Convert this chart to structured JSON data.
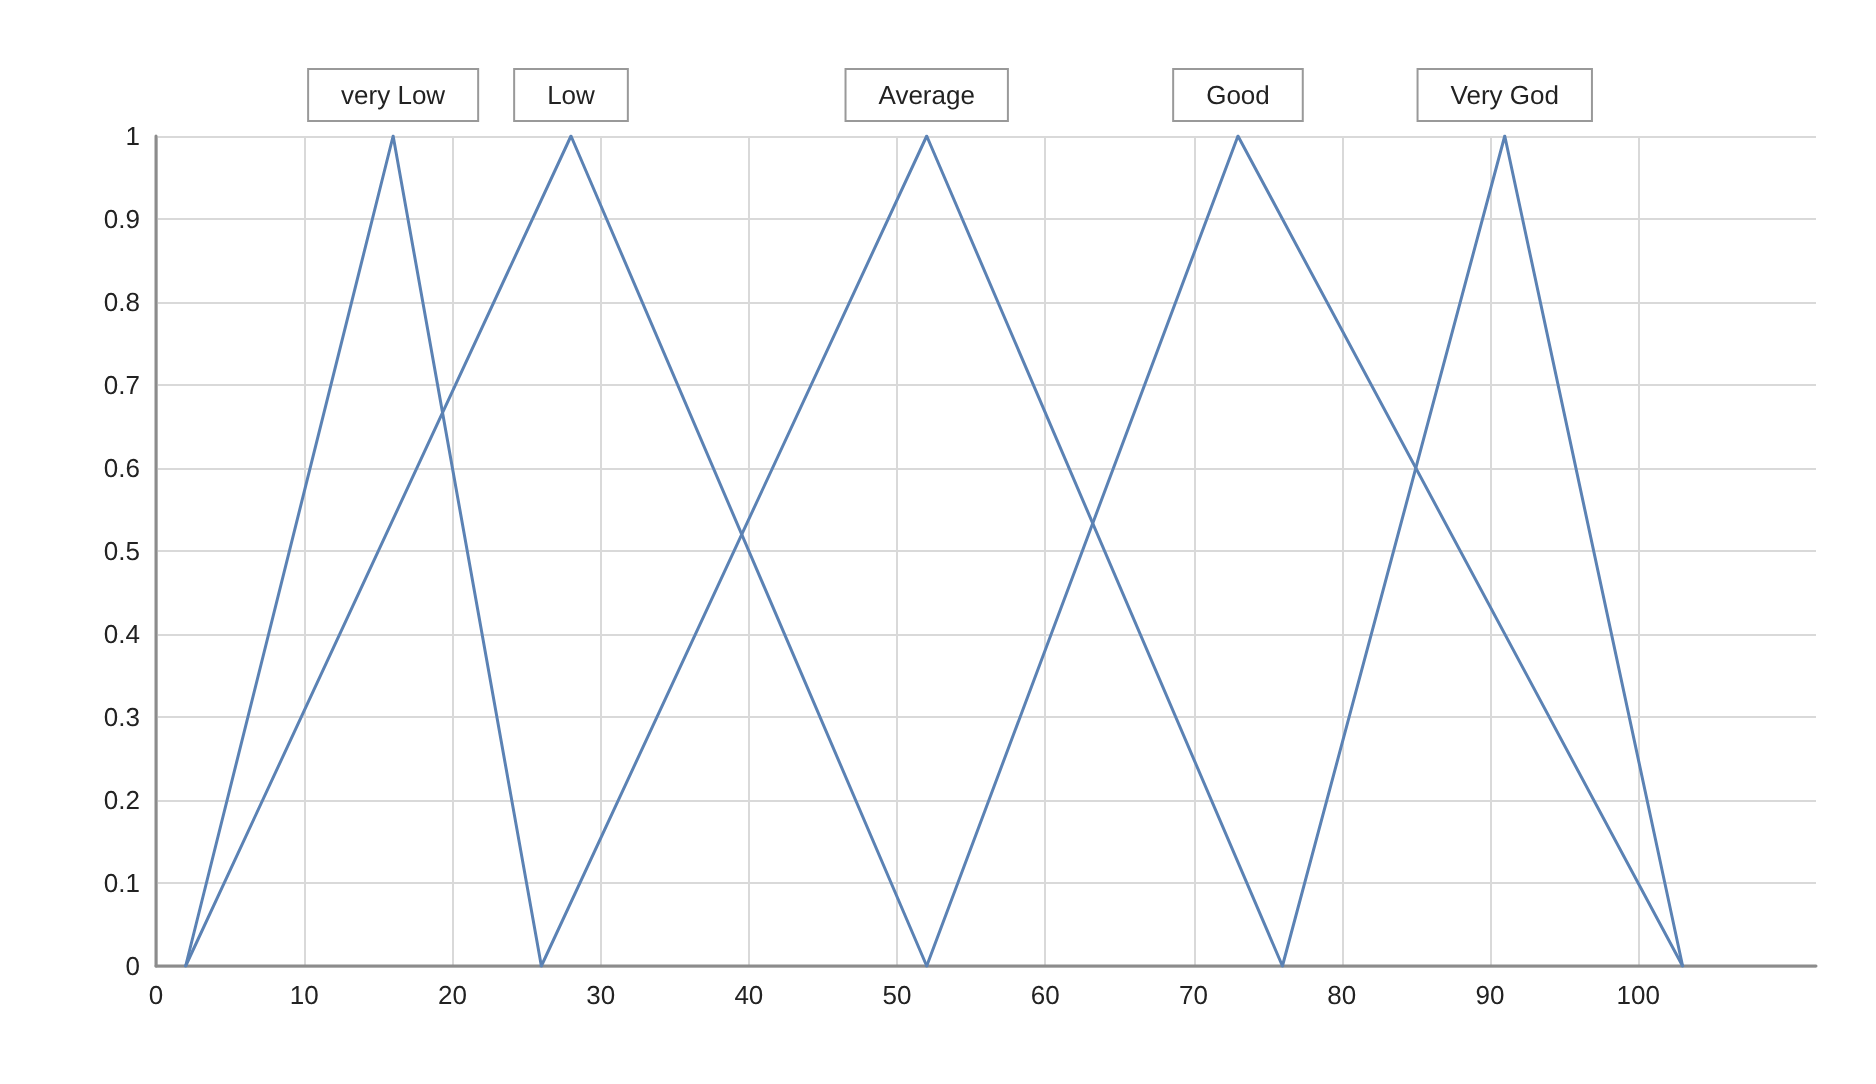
{
  "chart_data": {
    "type": "line",
    "marker": "none",
    "line_style": "solid",
    "grid": true,
    "xlim": [
      0,
      112
    ],
    "xticks": [
      0,
      10,
      20,
      30,
      40,
      50,
      60,
      70,
      80,
      90,
      100
    ],
    "ylim": [
      0,
      1
    ],
    "yticks": [
      0,
      0.1,
      0.2,
      0.3,
      0.4,
      0.5,
      0.6,
      0.7,
      0.8,
      0.9,
      1
    ],
    "series": [
      {
        "color": "#5b82b4",
        "x": [
          2,
          16,
          26
        ],
        "values": [
          0,
          1,
          0
        ]
      },
      {
        "color": "#5b82b4",
        "x": [
          2,
          28,
          52
        ],
        "values": [
          0,
          1,
          0
        ]
      },
      {
        "color": "#5b82b4",
        "x": [
          26,
          52,
          76
        ],
        "values": [
          0,
          1,
          0
        ]
      },
      {
        "color": "#5b82b4",
        "x": [
          52,
          73,
          103
        ],
        "values": [
          0,
          1,
          0
        ]
      },
      {
        "color": "#5b82b4",
        "x": [
          76,
          91,
          103
        ],
        "values": [
          0,
          1,
          0
        ]
      }
    ],
    "annotations": [
      {
        "text": "very Low",
        "x": 16,
        "y": 1
      },
      {
        "text": "Low",
        "x": 28,
        "y": 1
      },
      {
        "text": "Average",
        "x": 52,
        "y": 1
      },
      {
        "text": "Good",
        "x": 73,
        "y": 1
      },
      {
        "text": "Very God",
        "x": 91,
        "y": 1
      }
    ]
  }
}
